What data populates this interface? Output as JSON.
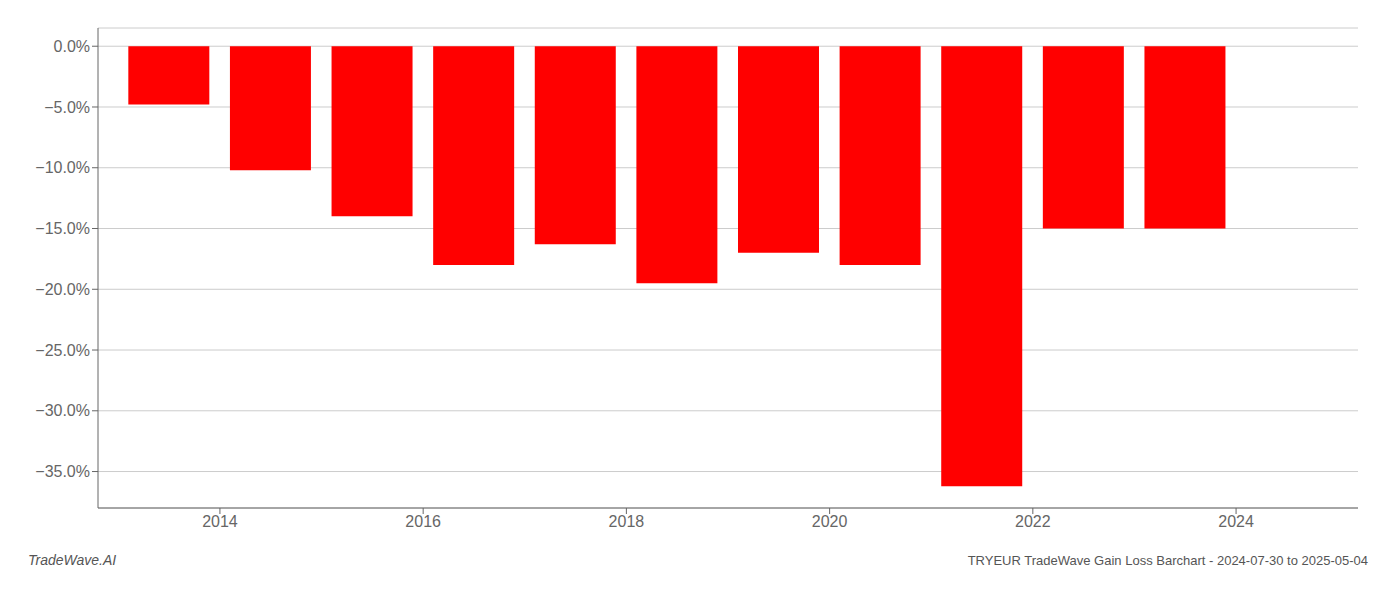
{
  "chart_data": {
    "type": "bar",
    "title": "TRYEUR TradeWave Gain Loss Barchart - 2024-07-30 to 2025-05-04",
    "annotations": [
      {
        "text": "TradeWave.AI"
      }
    ],
    "x": [
      2013.5,
      2014.5,
      2015.5,
      2016.5,
      2017.5,
      2018.5,
      2019.5,
      2020.5,
      2021.5,
      2022.5,
      2023.5
    ],
    "values": [
      -4.8,
      -10.2,
      -14.0,
      -18.0,
      -16.3,
      -19.5,
      -17.0,
      -18.0,
      -36.2,
      -15.0,
      -15.0
    ],
    "color": "#ff0000",
    "xlim": [
      2012.8,
      2025.2
    ],
    "xticks": [
      2014,
      2016,
      2018,
      2020,
      2022,
      2024
    ],
    "ylim": [
      -38,
      1.5
    ],
    "yticks": [
      {
        "value": 0.0,
        "label": "0.0%"
      },
      {
        "value": -5.0,
        "label": "−5.0%"
      },
      {
        "value": -10.0,
        "label": "−10.0%"
      },
      {
        "value": -15.0,
        "label": "−15.0%"
      },
      {
        "value": -20.0,
        "label": "−20.0%"
      },
      {
        "value": -25.0,
        "label": "−25.0%"
      },
      {
        "value": -30.0,
        "label": "−30.0%"
      },
      {
        "value": -35.0,
        "label": "−35.0%"
      }
    ],
    "grid": true
  }
}
